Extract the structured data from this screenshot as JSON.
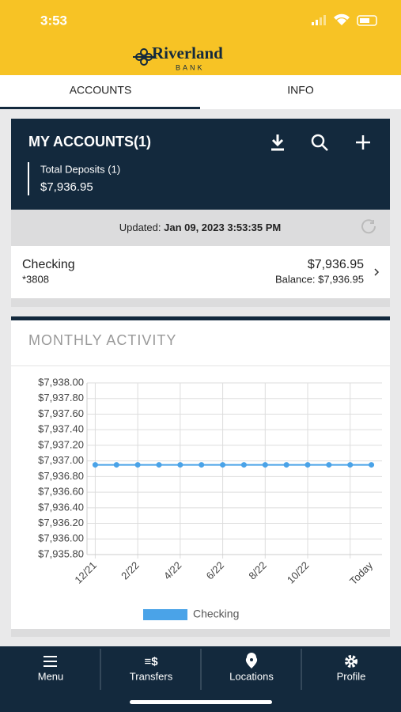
{
  "status_bar": {
    "time": "3:53"
  },
  "header": {
    "logo_name": "Riverland",
    "logo_sub": "BANK"
  },
  "tabs": [
    "ACCOUNTS",
    "INFO"
  ],
  "accounts": {
    "title": "MY ACCOUNTS(1)",
    "total_label": "Total Deposits (1)",
    "total_value": "$7,936.95",
    "updated_label": "Updated:",
    "updated_value": "Jan 09, 2023 3:53:35 PM",
    "items": [
      {
        "name": "Checking",
        "number": "*3808",
        "amount": "$7,936.95",
        "balance": "Balance: $7,936.95"
      }
    ]
  },
  "section_title": "MONTHLY ACTIVITY",
  "chart_data": {
    "type": "line",
    "categories": [
      "12/21",
      null,
      "2/22",
      null,
      "4/22",
      null,
      "6/22",
      null,
      "8/22",
      null,
      "10/22",
      null,
      null,
      "Today"
    ],
    "series": [
      {
        "name": "Checking",
        "color": "#4aa3e8",
        "values": [
          7936.95,
          7936.95,
          7936.95,
          7936.95,
          7936.95,
          7936.95,
          7936.95,
          7936.95,
          7936.95,
          7936.95,
          7936.95,
          7936.95,
          7936.95,
          7936.95
        ]
      }
    ],
    "ylim": [
      7935.8,
      7938
    ],
    "yticks": [
      {
        "value": 7935.8,
        "label": "$7,935.80"
      },
      {
        "value": 7936,
        "label": "$7,936.00"
      },
      {
        "value": 7936.2,
        "label": "$7,936.20"
      },
      {
        "value": 7936.4,
        "label": "$7,936.40"
      },
      {
        "value": 7936.6,
        "label": "$7,936.60"
      },
      {
        "value": 7936.8,
        "label": "$7,936.80"
      },
      {
        "value": 7937,
        "label": "$7,937.00"
      },
      {
        "value": 7937.2,
        "label": "$7,937.20"
      },
      {
        "value": 7937.4,
        "label": "$7,937.40"
      },
      {
        "value": 7937.6,
        "label": "$7,937.60"
      },
      {
        "value": 7937.8,
        "label": "$7,937.80"
      },
      {
        "value": 7938,
        "label": "$7,938.00"
      }
    ],
    "grid": true,
    "legend": "bottom"
  },
  "nav": [
    "Menu",
    "Transfers",
    "Locations",
    "Profile"
  ]
}
